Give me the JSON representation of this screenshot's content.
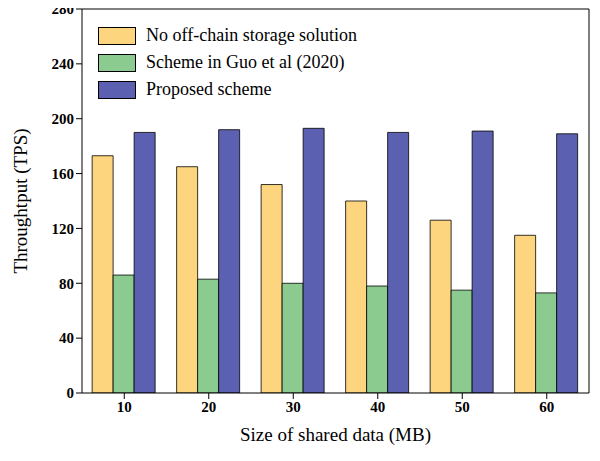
{
  "chart_data": {
    "type": "bar",
    "x_label": "Size of shared data (MB)",
    "y_label": "Throughtput (TPS)",
    "categories": [
      10,
      20,
      30,
      40,
      50,
      60
    ],
    "series": [
      {
        "name": "No off-chain storage solution",
        "color": "#fdd57e",
        "values": [
          173,
          165,
          152,
          140,
          126,
          115
        ]
      },
      {
        "name": "Scheme in Guo et al (2020)",
        "color": "#8bcb8f",
        "values": [
          86,
          83,
          80,
          78,
          75,
          73
        ]
      },
      {
        "name": "Proposed scheme",
        "color": "#5c60b0",
        "values": [
          190,
          192,
          193,
          190,
          191,
          189
        ]
      }
    ],
    "ylim": [
      0,
      280
    ],
    "yticks": [
      0,
      40,
      80,
      120,
      160,
      200,
      240,
      280
    ],
    "grid": false,
    "legend": "upper left"
  }
}
